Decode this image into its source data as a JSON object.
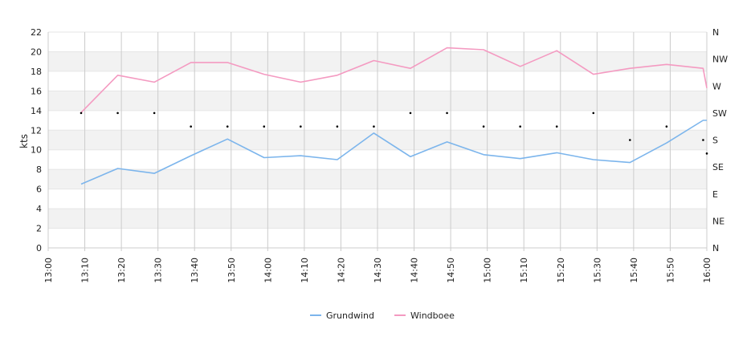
{
  "chart_data": {
    "type": "line",
    "ylabel": "kts",
    "ylim": [
      0,
      22
    ],
    "y_ticks": [
      "0",
      "2",
      "4",
      "6",
      "8",
      "10",
      "12",
      "14",
      "16",
      "18",
      "20",
      "22"
    ],
    "x_ticks": [
      "13:00",
      "13:10",
      "13:20",
      "13:30",
      "13:40",
      "13:50",
      "14:00",
      "14:10",
      "14:20",
      "14:30",
      "14:40",
      "14:50",
      "15:00",
      "15:10",
      "15:20",
      "15:30",
      "15:40",
      "15:50",
      "16:00"
    ],
    "direction_ticks": [
      "N",
      "NW",
      "W",
      "SW",
      "S",
      "SE",
      "E",
      "NE",
      "N"
    ],
    "grid": true,
    "legend_position": "bottom",
    "series": [
      {
        "name": "Grundwind",
        "color": "#7cb5ec",
        "points": [
          [
            "13:09",
            6.5
          ],
          [
            "13:19",
            8.1
          ],
          [
            "13:29",
            7.6
          ],
          [
            "13:39",
            9.4
          ],
          [
            "13:49",
            11.1
          ],
          [
            "13:59",
            9.2
          ],
          [
            "14:09",
            9.4
          ],
          [
            "14:19",
            9.0
          ],
          [
            "14:29",
            11.7
          ],
          [
            "14:39",
            9.3
          ],
          [
            "14:49",
            10.8
          ],
          [
            "14:59",
            9.5
          ],
          [
            "15:09",
            9.1
          ],
          [
            "15:19",
            9.7
          ],
          [
            "15:29",
            9.0
          ],
          [
            "15:39",
            8.7
          ],
          [
            "15:49",
            10.7
          ],
          [
            "15:59",
            13.0
          ],
          [
            "16:00",
            13.0
          ]
        ]
      },
      {
        "name": "Windboee",
        "color": "#f49ac1",
        "points": [
          [
            "13:09",
            13.8
          ],
          [
            "13:19",
            17.6
          ],
          [
            "13:29",
            16.9
          ],
          [
            "13:39",
            18.9
          ],
          [
            "13:49",
            18.9
          ],
          [
            "13:59",
            17.7
          ],
          [
            "14:09",
            16.9
          ],
          [
            "14:19",
            17.6
          ],
          [
            "14:29",
            19.1
          ],
          [
            "14:39",
            18.3
          ],
          [
            "14:49",
            20.4
          ],
          [
            "14:59",
            20.2
          ],
          [
            "15:09",
            18.5
          ],
          [
            "15:19",
            20.1
          ],
          [
            "15:29",
            17.7
          ],
          [
            "15:39",
            18.3
          ],
          [
            "15:49",
            18.7
          ],
          [
            "15:59",
            18.3
          ],
          [
            "16:00",
            16.3
          ]
        ]
      }
    ],
    "direction_points": [
      [
        "13:09",
        "SW"
      ],
      [
        "13:19",
        "SW"
      ],
      [
        "13:29",
        "SW"
      ],
      [
        "13:39",
        "SSW"
      ],
      [
        "13:49",
        "SSW"
      ],
      [
        "13:59",
        "SSW"
      ],
      [
        "14:09",
        "SSW"
      ],
      [
        "14:19",
        "SSW"
      ],
      [
        "14:29",
        "SSW"
      ],
      [
        "14:39",
        "SW"
      ],
      [
        "14:49",
        "SW"
      ],
      [
        "14:59",
        "SSW"
      ],
      [
        "15:09",
        "SSW"
      ],
      [
        "15:19",
        "SSW"
      ],
      [
        "15:29",
        "SW"
      ],
      [
        "15:39",
        "S"
      ],
      [
        "15:49",
        "SSW"
      ],
      [
        "15:59",
        "S"
      ],
      [
        "16:00",
        "SSE"
      ]
    ]
  }
}
